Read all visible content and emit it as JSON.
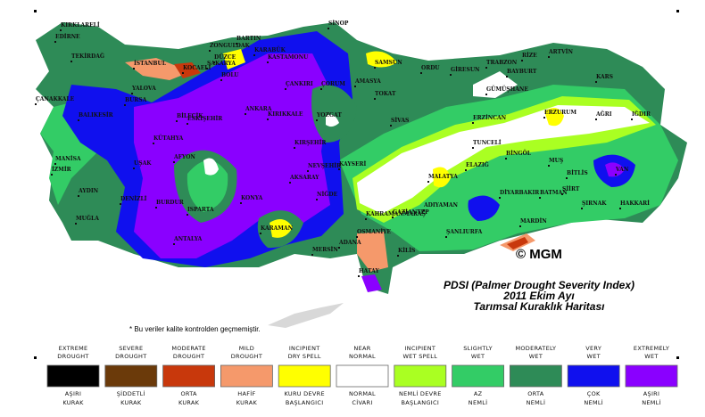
{
  "title_lines": [
    "PDSI (Palmer Drought Severity Index)",
    "2011 Ekim Ayı",
    "Tarımsal Kuraklık Haritası"
  ],
  "copyright": "© MGM",
  "note": "* Bu veriler kalite kontrolden geçmemiştir.",
  "cities": [
    "KIRKLARELİ",
    "EDİRNE",
    "TEKİRDAĞ",
    "İSTANBUL",
    "KOCAELİ",
    "SAKARYA",
    "DÜZCE",
    "BOLU",
    "ZONGULDAK",
    "BARTIN",
    "KARABÜK",
    "SİNOP",
    "KASTAMONU",
    "SAMSUN",
    "ORDU",
    "GİRESUN",
    "TRABZON",
    "RİZE",
    "ARTVİN",
    "KARS",
    "BAYBURT",
    "GÜMÜŞHANE",
    "ERZURUM",
    "AĞRI",
    "IĞDIR",
    "ERZİNCAN",
    "TUNCELİ",
    "BİNGÖL",
    "MUŞ",
    "BİTLİS",
    "VAN",
    "HAKKARİ",
    "ŞIRNAK",
    "SİİRT",
    "BATMAN",
    "DİYARBAKIR",
    "MARDİN",
    "ŞANLIURFA",
    "ADIYAMAN",
    "MALATYA",
    "ELAZIĞ",
    "SİVAS",
    "TOKAT",
    "AMASYA",
    "ÇORUM",
    "YOZGAT",
    "ÇANKIRI",
    "KIRIKKALE",
    "ANKARA",
    "KIRŞEHİR",
    "NEVŞEHİR",
    "KAYSERİ",
    "AKSARAY",
    "NİĞDE",
    "KAHRAMANMARAŞ",
    "GAZİANTEP",
    "KİLİS",
    "OSMANİYE",
    "ADANA",
    "HATAY",
    "MERSİN",
    "KARAMAN",
    "KONYA",
    "ANTALYA",
    "ISPARTA",
    "BURDUR",
    "DENİZLİ",
    "MUĞLA",
    "AYDIN",
    "İZMİR",
    "MANİSA",
    "UŞAK",
    "AFYON",
    "KÜTAHYA",
    "BİLECİK",
    "ESKİŞEHİR",
    "BURSA",
    "YALOVA",
    "BALIKESİR",
    "ÇANAKKALE"
  ],
  "legend": [
    {
      "en": [
        "EXTREME",
        "DROUGHT"
      ],
      "tr": [
        "AŞIRI",
        "KURAK"
      ],
      "color": "#000000"
    },
    {
      "en": [
        "SEVERE",
        "DROUGHT"
      ],
      "tr": [
        "ŞİDDETLİ",
        "KURAK"
      ],
      "color": "#6b3a0a"
    },
    {
      "en": [
        "MODERATE",
        "DROUGHT"
      ],
      "tr": [
        "ORTA",
        "KURAK"
      ],
      "color": "#c8380c"
    },
    {
      "en": [
        "MILD",
        "DROUGHT"
      ],
      "tr": [
        "HAFİF",
        "KURAK"
      ],
      "color": "#f5996b"
    },
    {
      "en": [
        "INCIPIENT",
        "DRY SPELL"
      ],
      "tr": [
        "KURU DEVRE",
        "BAŞLANGICI"
      ],
      "color": "#ffff00"
    },
    {
      "en": [
        "NEAR",
        "NORMAL"
      ],
      "tr": [
        "NORMAL",
        "CİVARI"
      ],
      "color": "#ffffff"
    },
    {
      "en": [
        "INCIPIENT",
        "WET SPELL"
      ],
      "tr": [
        "NEMLİ DEVRE",
        "BAŞLANGICI"
      ],
      "color": "#aaff22"
    },
    {
      "en": [
        "SLIGHTLY",
        "WET"
      ],
      "tr": [
        "AZ",
        "NEMLİ"
      ],
      "color": "#33cc66"
    },
    {
      "en": [
        "MODERATELY",
        "WET"
      ],
      "tr": [
        "ORTA",
        "NEMLİ"
      ],
      "color": "#2e8b57"
    },
    {
      "en": [
        "VERY",
        "WET"
      ],
      "tr": [
        "ÇOK",
        "NEMLİ"
      ],
      "color": "#1010ee"
    },
    {
      "en": [
        "EXTREMELY",
        "WET"
      ],
      "tr": [
        "AŞIRI",
        "NEMLİ"
      ],
      "color": "#8a00ff"
    }
  ]
}
